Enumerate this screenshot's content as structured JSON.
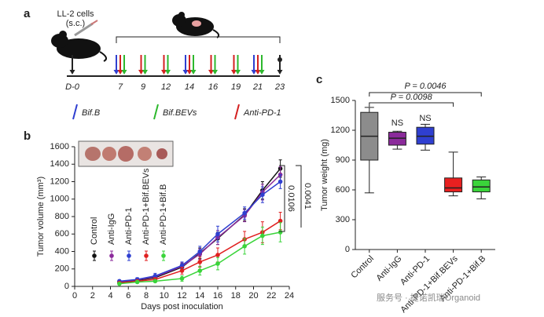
{
  "panel_labels": [
    "a",
    "b",
    "c"
  ],
  "timeline": {
    "cell_label": "LL-2 cells",
    "cell_sub": "(s.c.)",
    "days": [
      {
        "label": "D-0",
        "arrows": [
          "#222222"
        ]
      },
      {
        "label": "7",
        "arrows": [
          "#2f3fd0",
          "#d42020",
          "#2db82d"
        ]
      },
      {
        "label": "9",
        "arrows": [
          "#d42020",
          "#2db82d"
        ]
      },
      {
        "label": "12",
        "arrows": [
          "#d42020",
          "#2db82d"
        ]
      },
      {
        "label": "14",
        "arrows": [
          "#2f3fd0",
          "#d42020",
          "#2db82d"
        ]
      },
      {
        "label": "16",
        "arrows": [
          "#d42020",
          "#2db82d"
        ]
      },
      {
        "label": "19",
        "arrows": [
          "#d42020",
          "#2db82d"
        ]
      },
      {
        "label": "21",
        "arrows": [
          "#2f3fd0",
          "#d42020",
          "#2db82d"
        ]
      },
      {
        "label": "23",
        "arrows": [
          "#222222"
        ]
      }
    ],
    "legend": [
      {
        "label": "Bif.B",
        "color": "#2f3fd0"
      },
      {
        "label": "Bif.BEVs",
        "color": "#2db82d"
      },
      {
        "label": "Anti-PD-1",
        "color": "#d42020"
      }
    ]
  },
  "chart_data": [
    {
      "type": "line",
      "xlabel": "Days post inoculation",
      "ylabel": "Tumor volume (mm³)",
      "x": [
        5,
        7,
        9,
        12,
        14,
        16,
        19,
        21,
        23
      ],
      "xlim": [
        0,
        24
      ],
      "xticks": [
        0,
        2,
        4,
        6,
        8,
        10,
        12,
        14,
        16,
        18,
        20,
        22,
        24
      ],
      "ylim": [
        0,
        1600
      ],
      "yticks": [
        0,
        200,
        400,
        600,
        800,
        1000,
        1200,
        1400,
        1600
      ],
      "series": [
        {
          "name": "Control",
          "color": "#111111",
          "values": [
            50,
            70,
            100,
            220,
            380,
            550,
            820,
            1100,
            1350
          ],
          "errors": [
            15,
            20,
            25,
            40,
            60,
            70,
            70,
            100,
            100
          ]
        },
        {
          "name": "Anti-IgG",
          "color": "#8b2a9b",
          "values": [
            55,
            75,
            110,
            230,
            370,
            560,
            810,
            1080,
            1280
          ],
          "errors": [
            15,
            20,
            25,
            40,
            60,
            80,
            70,
            90,
            90
          ]
        },
        {
          "name": "Anti-PD-1",
          "color": "#2f3fd0",
          "values": [
            60,
            80,
            120,
            240,
            400,
            600,
            840,
            1050,
            1200
          ],
          "errors": [
            15,
            20,
            30,
            40,
            60,
            90,
            70,
            90,
            80
          ]
        },
        {
          "name": "Anti-PD-1+Bif.BEVs",
          "color": "#e02020",
          "values": [
            40,
            60,
            80,
            180,
            280,
            360,
            540,
            620,
            750
          ],
          "errors": [
            10,
            15,
            20,
            40,
            60,
            80,
            90,
            120,
            100
          ]
        },
        {
          "name": "Anti-PD-1+Bif.B",
          "color": "#3ad43a",
          "values": [
            30,
            50,
            60,
            90,
            180,
            260,
            460,
            580,
            620
          ],
          "errors": [
            10,
            15,
            15,
            30,
            50,
            70,
            90,
            100,
            110
          ]
        }
      ],
      "significance": [
        "0.0106",
        "0.0041"
      ]
    },
    {
      "type": "box",
      "ylabel": "Tumor weight (mg)",
      "categories": [
        "Control",
        "Anti-IgG",
        "Anti-PD-1",
        "Anti-PD-1+Bif.BEVs",
        "Anti-PD-1+Bif.B"
      ],
      "colors": [
        "#8c8c8c",
        "#8b2a9b",
        "#2f3fd0",
        "#e82020",
        "#3ad43a"
      ],
      "values": [
        [
          570,
          900,
          1140,
          1380,
          1430
        ],
        [
          1010,
          1050,
          1120,
          1180,
          1190
        ],
        [
          1000,
          1060,
          1140,
          1230,
          1260
        ],
        [
          540,
          580,
          620,
          720,
          980
        ],
        [
          510,
          580,
          630,
          700,
          730
        ]
      ],
      "ylim": [
        0,
        1500
      ],
      "yticks": [
        0,
        300,
        600,
        900,
        1200,
        1500
      ],
      "annotations": [
        "P = 0.0046",
        "P = 0.0098",
        "NS",
        "NS"
      ]
    }
  ],
  "watermark": "服务号 · 捷诺凯瑞Organoid"
}
